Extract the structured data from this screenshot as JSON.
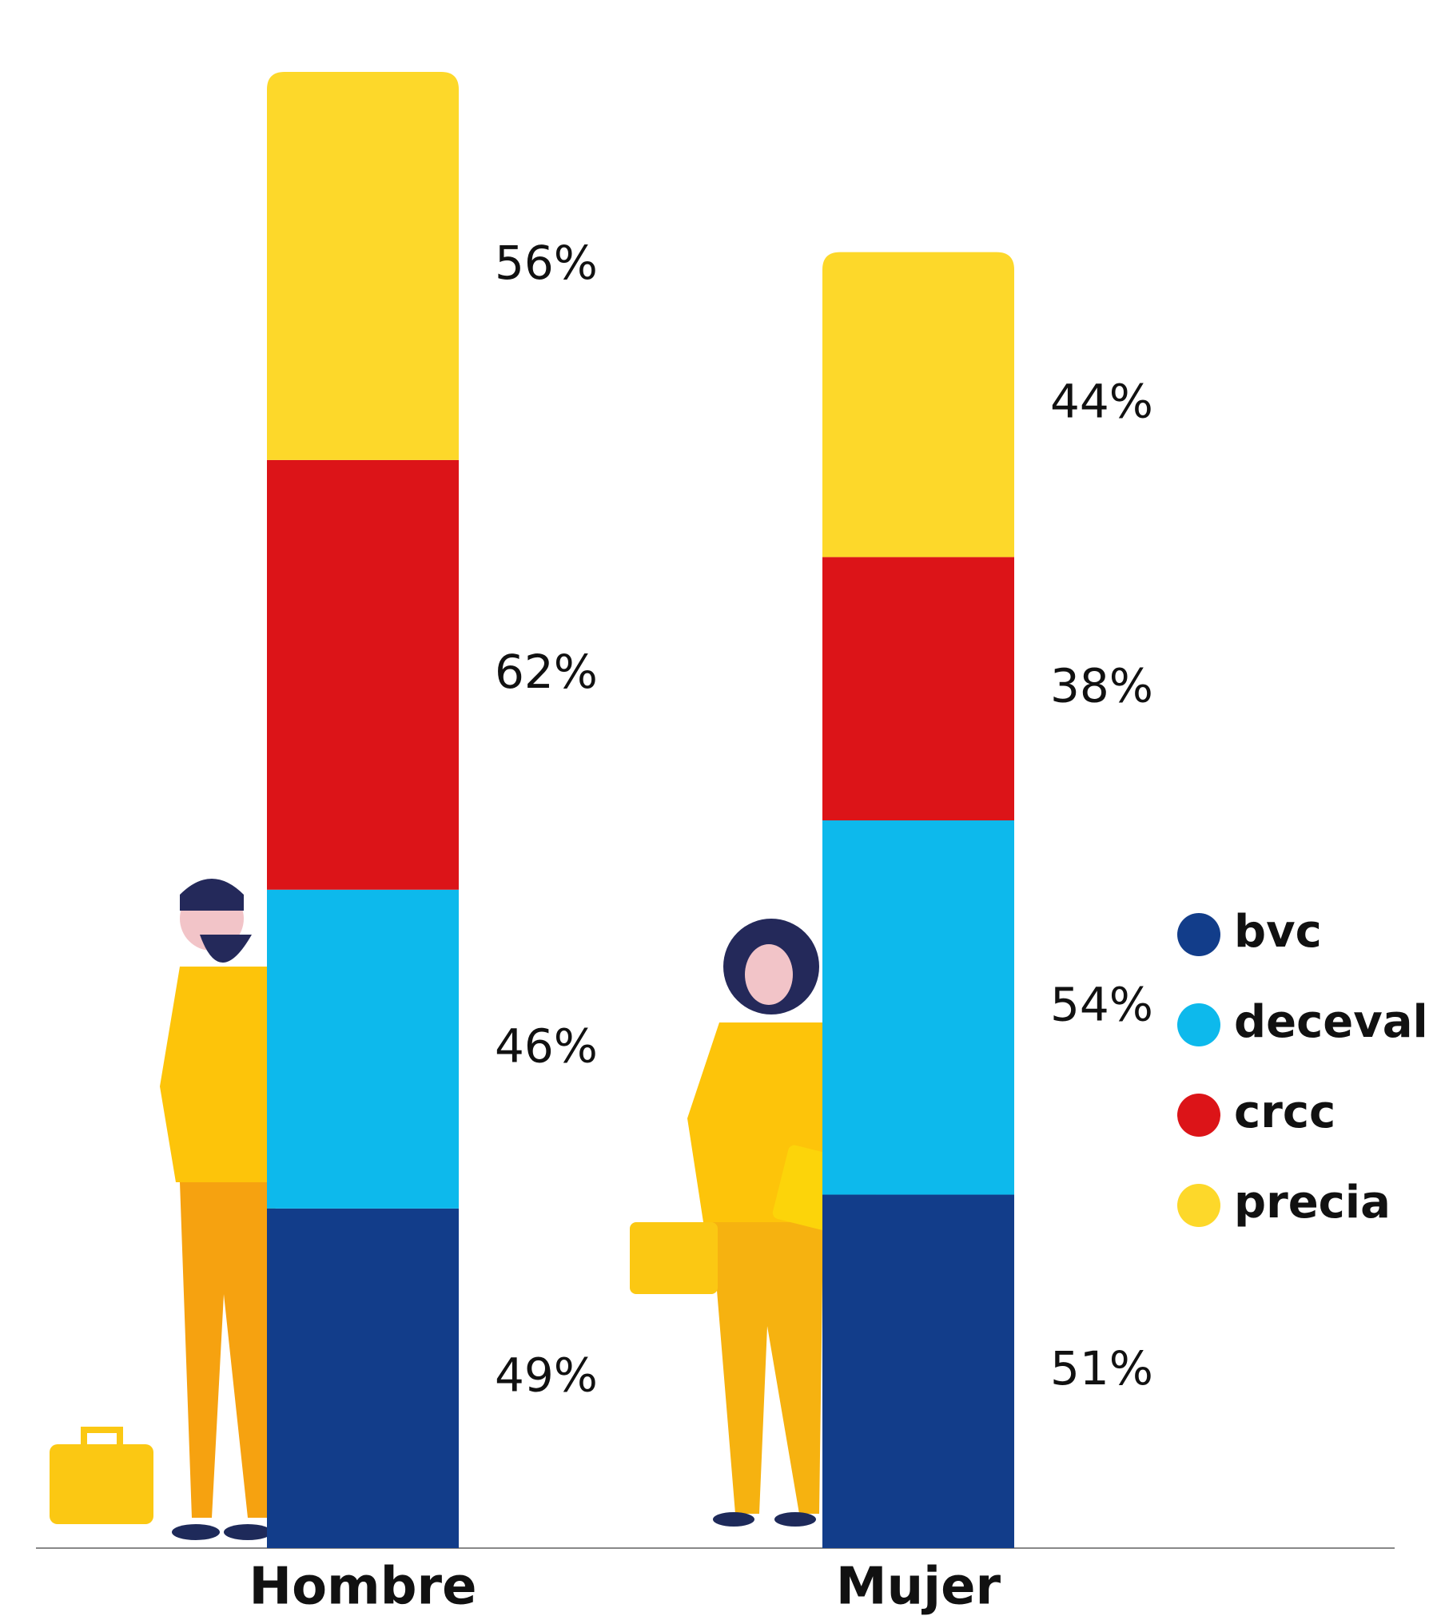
{
  "chart_data": {
    "type": "stacked_bar",
    "categories": [
      "Hombre",
      "Mujer"
    ],
    "series": [
      {
        "name": "bvc",
        "color": "#123d8a",
        "values": [
          49,
          51
        ]
      },
      {
        "name": "deceval",
        "color": "#0db9ec",
        "values": [
          46,
          54
        ]
      },
      {
        "name": "crcc",
        "color": "#dc1418",
        "values": [
          62,
          38
        ]
      },
      {
        "name": "precia",
        "color": "#fdd82a",
        "values": [
          56,
          44
        ]
      }
    ]
  }
}
